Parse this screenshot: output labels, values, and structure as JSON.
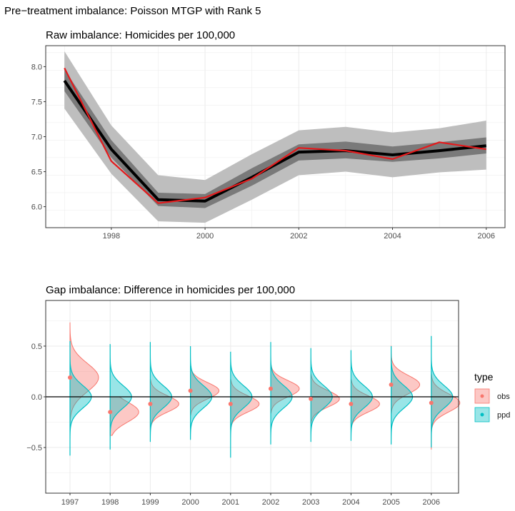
{
  "page": {
    "title": "Pre−treatment imbalance: Poisson MTGP with Rank 5"
  },
  "colors": {
    "obs": "#F8766D",
    "ppd": "#00BFC4",
    "mean_line": "#000000",
    "observed_line": "#E41A1C"
  },
  "chart_data": [
    {
      "type": "line",
      "title": "Raw imbalance: Homicides per 100,000",
      "xlabel": "",
      "ylabel": "",
      "xlim": [
        1996.6,
        2006.4
      ],
      "ylim": [
        5.7,
        8.3
      ],
      "x_ticks": [
        1998,
        2000,
        2002,
        2004,
        2006
      ],
      "y_ticks": [
        "6.0",
        "6.5",
        "7.0",
        "7.5",
        "8.0"
      ],
      "x": [
        1997,
        1998,
        1999,
        2000,
        2001,
        2002,
        2003,
        2004,
        2005,
        2006
      ],
      "grid": true,
      "series": [
        {
          "role": "posterior mean",
          "color": "#000000",
          "values": [
            7.8,
            6.82,
            6.1,
            6.08,
            6.42,
            6.78,
            6.8,
            6.74,
            6.8,
            6.87
          ]
        },
        {
          "role": "observed",
          "color": "#E41A1C",
          "values": [
            7.98,
            6.65,
            6.05,
            6.13,
            6.4,
            6.84,
            6.8,
            6.68,
            6.92,
            6.82
          ]
        }
      ],
      "bands": [
        {
          "role": "outer interval",
          "color": "#bebebe",
          "lower": [
            7.4,
            6.47,
            5.79,
            5.77,
            6.1,
            6.45,
            6.5,
            6.42,
            6.49,
            6.53
          ],
          "upper": [
            8.22,
            7.16,
            6.45,
            6.38,
            6.75,
            7.09,
            7.14,
            7.06,
            7.12,
            7.23
          ]
        },
        {
          "role": "inner interval",
          "color": "#7a7a7a",
          "lower": [
            7.65,
            6.7,
            6.01,
            5.98,
            6.3,
            6.66,
            6.69,
            6.64,
            6.69,
            6.76
          ],
          "upper": [
            7.96,
            6.95,
            6.2,
            6.18,
            6.55,
            6.89,
            6.93,
            6.86,
            6.92,
            6.99
          ]
        }
      ]
    },
    {
      "type": "violin",
      "title": "Gap imbalance: Difference in homicides per 100,000",
      "xlabel": "",
      "ylabel": "",
      "categories": [
        "1997",
        "1998",
        "1999",
        "2000",
        "2001",
        "2002",
        "2003",
        "2004",
        "2005",
        "2006"
      ],
      "ylim": [
        -0.95,
        0.95
      ],
      "y_ticks": [
        "−0.5",
        "0.0",
        "0.5"
      ],
      "y_tick_values": [
        -0.5,
        0.0,
        0.5
      ],
      "reference_line": 0,
      "grid": true,
      "legend": {
        "title": "type",
        "position": "right",
        "entries": [
          "obs",
          "ppd"
        ]
      },
      "obs_point": [
        0.19,
        -0.15,
        -0.07,
        0.06,
        -0.07,
        0.08,
        -0.02,
        -0.07,
        0.12,
        -0.06
      ],
      "obs_density": [
        {
          "center": 0.19,
          "sd": 0.14,
          "lo": -0.32,
          "hi": 0.73
        },
        {
          "center": -0.15,
          "sd": 0.1,
          "lo": -0.38,
          "hi": 0.0
        },
        {
          "center": -0.07,
          "sd": 0.08,
          "lo": -0.32,
          "hi": 0.17
        },
        {
          "center": 0.06,
          "sd": 0.08,
          "lo": -0.18,
          "hi": 0.29
        },
        {
          "center": -0.07,
          "sd": 0.08,
          "lo": -0.32,
          "hi": 0.17
        },
        {
          "center": 0.08,
          "sd": 0.08,
          "lo": -0.16,
          "hi": 0.31
        },
        {
          "center": -0.02,
          "sd": 0.08,
          "lo": -0.26,
          "hi": 0.22
        },
        {
          "center": -0.07,
          "sd": 0.08,
          "lo": -0.32,
          "hi": 0.17
        },
        {
          "center": 0.12,
          "sd": 0.09,
          "lo": -0.16,
          "hi": 0.5
        },
        {
          "center": -0.06,
          "sd": 0.09,
          "lo": -0.52,
          "hi": 0.22
        }
      ],
      "ppd_density": [
        {
          "center": 0.0,
          "sd": 0.11,
          "lo": -0.58,
          "hi": 0.55
        },
        {
          "center": 0.0,
          "sd": 0.11,
          "lo": -0.52,
          "hi": 0.52
        },
        {
          "center": 0.0,
          "sd": 0.11,
          "lo": -0.44,
          "hi": 0.54
        },
        {
          "center": 0.0,
          "sd": 0.11,
          "lo": -0.42,
          "hi": 0.5
        },
        {
          "center": 0.0,
          "sd": 0.11,
          "lo": -0.6,
          "hi": 0.44
        },
        {
          "center": 0.0,
          "sd": 0.11,
          "lo": -0.47,
          "hi": 0.54
        },
        {
          "center": 0.0,
          "sd": 0.11,
          "lo": -0.44,
          "hi": 0.48
        },
        {
          "center": 0.0,
          "sd": 0.11,
          "lo": -0.43,
          "hi": 0.46
        },
        {
          "center": 0.0,
          "sd": 0.11,
          "lo": -0.47,
          "hi": 0.5
        },
        {
          "center": 0.0,
          "sd": 0.11,
          "lo": -0.5,
          "hi": 0.6
        }
      ]
    }
  ]
}
